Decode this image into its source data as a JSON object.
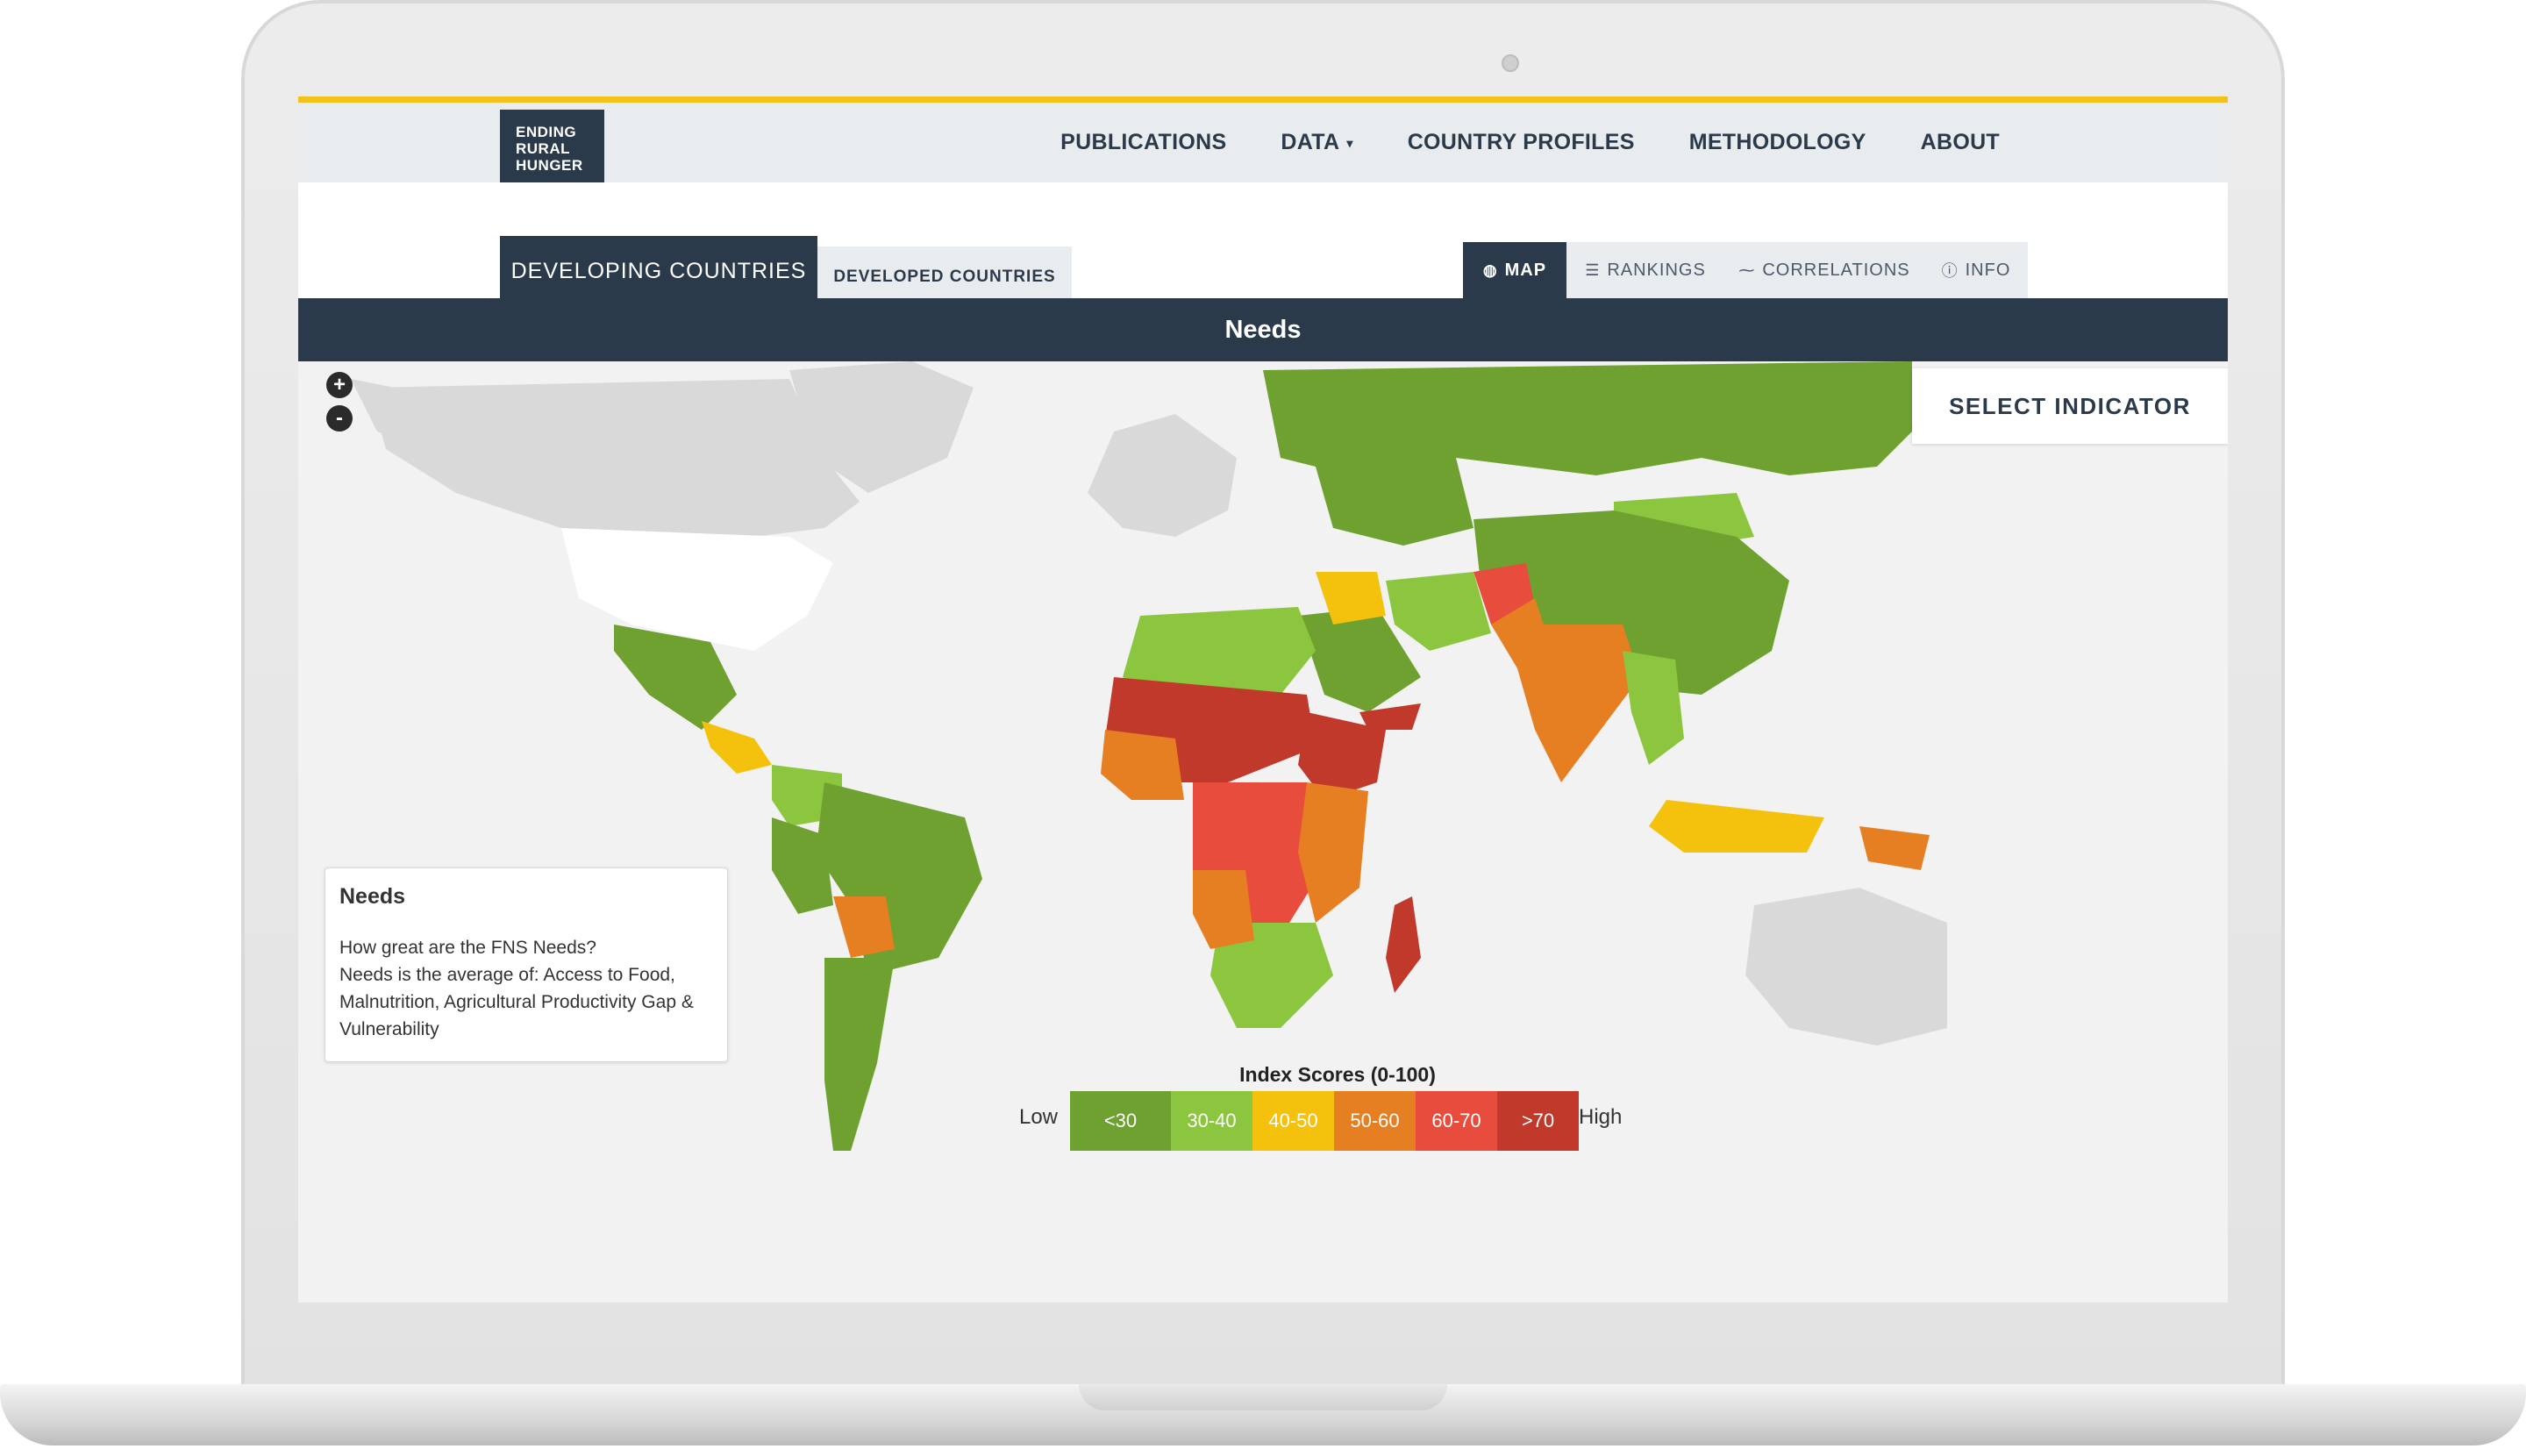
{
  "brand": {
    "logo_lines": [
      "ENDING",
      "RURAL",
      "HUNGER"
    ]
  },
  "nav": {
    "items": [
      "PUBLICATIONS",
      "DATA",
      "COUNTRY PROFILES",
      "METHODOLOGY",
      "ABOUT"
    ],
    "data_caret": "▾"
  },
  "country_tabs": {
    "developing": "DEVELOPING COUNTRIES",
    "developed": "DEVELOPED COUNTRIES",
    "active": "developing"
  },
  "view_tabs": [
    {
      "label": "MAP",
      "icon": "globe-icon",
      "active": true
    },
    {
      "label": "RANKINGS",
      "icon": "list-icon",
      "active": false
    },
    {
      "label": "CORRELATIONS",
      "icon": "scatter-icon",
      "active": false
    },
    {
      "label": "INFO",
      "icon": "info-icon",
      "active": false
    }
  ],
  "page_title": "Needs",
  "map": {
    "zoom_in": "+",
    "zoom_out": "-",
    "select_indicator": "SELECT INDICATOR",
    "info": {
      "title": "Needs",
      "line1": "How great are the FNS Needs?",
      "line2": "Needs is the average of: Access to Food, Malnutrition, Agricultural Productivity Gap & Vulnerability"
    }
  },
  "legend": {
    "title": "Index Scores (0-100)",
    "low": "Low",
    "high": "High",
    "bins": [
      {
        "label": "<30",
        "color": "#6ea130"
      },
      {
        "label": "30-40",
        "color": "#8cc63f"
      },
      {
        "label": "40-50",
        "color": "#f4c20d"
      },
      {
        "label": "50-60",
        "color": "#e67e22"
      },
      {
        "label": "60-70",
        "color": "#e74c3c"
      },
      {
        "label": ">70",
        "color": "#c0392b"
      }
    ]
  },
  "colors": {
    "accent": "#f2c21b",
    "navy": "#2b3a4a",
    "no_data": "#d9d9d9"
  }
}
